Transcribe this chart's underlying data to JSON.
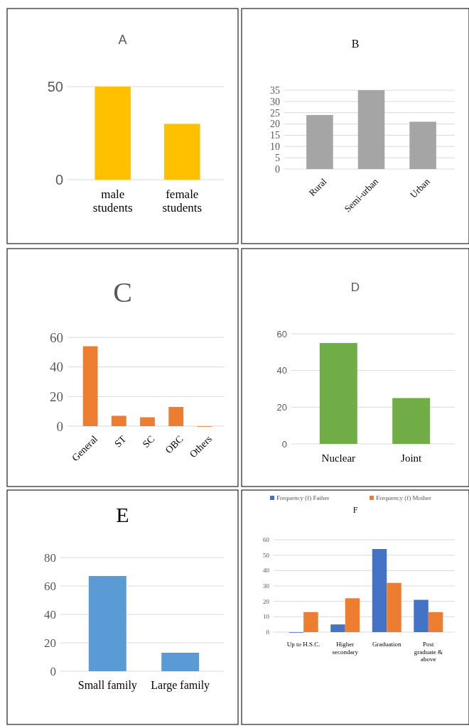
{
  "chart_data": [
    {
      "type": "bar",
      "title": "A",
      "categories": [
        "male students",
        "female students"
      ],
      "values": [
        50,
        30
      ],
      "color": "#ffc000",
      "ylim": [
        0,
        50
      ],
      "yticks": [
        0,
        50
      ],
      "grid": "y"
    },
    {
      "type": "bar",
      "title": "B",
      "categories": [
        "Rural",
        "Semi-urban",
        "Urban"
      ],
      "values": [
        24,
        35,
        21
      ],
      "color": "#a5a5a5",
      "ylim": [
        0,
        35
      ],
      "yticks": [
        0,
        5,
        10,
        15,
        20,
        25,
        30,
        35
      ],
      "grid": "y"
    },
    {
      "type": "bar",
      "title": "C",
      "categories": [
        "General",
        "ST",
        "SC",
        "OBC",
        "Others"
      ],
      "values": [
        54,
        7,
        6,
        13,
        0
      ],
      "color": "#ed7d31",
      "ylim": [
        0,
        60
      ],
      "yticks": [
        0,
        20,
        40,
        60
      ],
      "grid": "y"
    },
    {
      "type": "bar",
      "title": "D",
      "categories": [
        "Nuclear",
        "Joint"
      ],
      "values": [
        55,
        25
      ],
      "color": "#70ad47",
      "ylim": [
        0,
        60
      ],
      "yticks": [
        0,
        20,
        40,
        60
      ],
      "grid": "y"
    },
    {
      "type": "bar",
      "title": "E",
      "categories": [
        "Small family",
        "Large family"
      ],
      "values": [
        67,
        13
      ],
      "color": "#5b9bd5",
      "ylim": [
        0,
        80
      ],
      "yticks": [
        0,
        20,
        40,
        60,
        80
      ],
      "grid": "y"
    },
    {
      "type": "bar",
      "title": "F",
      "categories": [
        "Up to H.S.C.",
        "Higher secondary",
        "Graduation",
        "Post graduate & above"
      ],
      "series": [
        {
          "name": "Frequency (f) Father",
          "color": "#4472c4",
          "values": [
            0,
            5,
            54,
            21
          ]
        },
        {
          "name": "Frequency (f) Mother",
          "color": "#ed7d31",
          "values": [
            13,
            22,
            32,
            13
          ]
        }
      ],
      "ylim": [
        0,
        60
      ],
      "yticks": [
        0,
        10,
        20,
        30,
        40,
        50,
        60
      ],
      "grid": "y",
      "legend": "top"
    }
  ]
}
